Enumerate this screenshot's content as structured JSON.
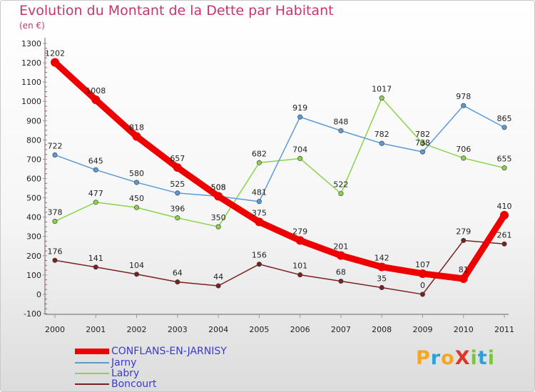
{
  "header": {
    "title": "Evolution du Montant de la Dette par Habitant",
    "subtitle": "(en €)"
  },
  "logo": {
    "text": "ProXiti",
    "letters": [
      {
        "ch": "P",
        "color": "#f5a623"
      },
      {
        "ch": "r",
        "color": "#2e9fd8"
      },
      {
        "ch": "o",
        "color": "#f5a623"
      },
      {
        "ch": "X",
        "color": "#e0342a"
      },
      {
        "ch": "i",
        "color": "#7cc243"
      },
      {
        "ch": "t",
        "color": "#2e9fd8"
      },
      {
        "ch": "i",
        "color": "#7cc243"
      }
    ]
  },
  "chart_data": {
    "type": "line",
    "title": "Evolution du Montant de la Dette par Habitant",
    "subtitle": "(en €)",
    "x": [
      "2000",
      "2001",
      "2002",
      "2003",
      "2004",
      "2005",
      "2006",
      "2007",
      "2008",
      "2009",
      "2010",
      "2011"
    ],
    "ylim": [
      -100,
      1300
    ],
    "yticks": [
      -100,
      0,
      100,
      200,
      300,
      400,
      500,
      600,
      700,
      800,
      900,
      1000,
      1100,
      1200,
      1300
    ],
    "grid": false,
    "legend": "bottom-left",
    "series": [
      {
        "name": "CONFLANS-EN-JARNISY",
        "color": "#ee0000",
        "values": [
          1202,
          1008,
          818,
          657,
          508,
          375,
          279,
          201,
          142,
          107,
          81,
          410
        ]
      },
      {
        "name": "Jarny",
        "color": "#5b9bd5",
        "values": [
          722,
          645,
          580,
          525,
          508,
          481,
          919,
          848,
          782,
          738,
          978,
          865
        ]
      },
      {
        "name": "Labry",
        "color": "#8bd34a",
        "values": [
          378,
          477,
          450,
          396,
          350,
          682,
          704,
          522,
          1017,
          782,
          706,
          655
        ]
      },
      {
        "name": "Boncourt",
        "color": "#7b2020",
        "values": [
          176,
          141,
          104,
          64,
          44,
          156,
          101,
          68,
          35,
          0,
          279,
          261
        ]
      }
    ]
  }
}
